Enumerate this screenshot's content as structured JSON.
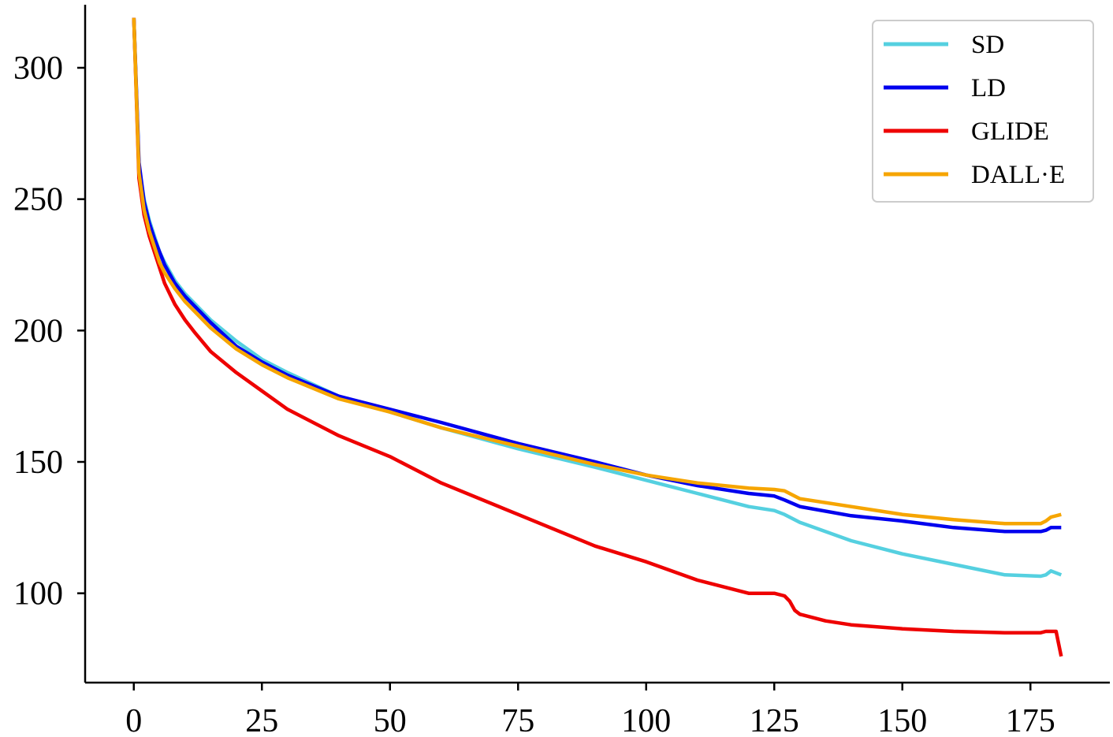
{
  "chart_data": {
    "type": "line",
    "title": "",
    "xlabel": "",
    "ylabel": "",
    "xlim": [
      -9.5,
      190.5
    ],
    "ylim": [
      66,
      324
    ],
    "x_ticks": [
      0,
      25,
      50,
      75,
      100,
      125,
      150,
      175
    ],
    "y_ticks": [
      100,
      150,
      200,
      250,
      300
    ],
    "grid": false,
    "legend_position": "top-right",
    "series": [
      {
        "name": "SD",
        "color": "#55d0e0",
        "x": [
          0,
          1,
          2,
          3,
          4,
          5,
          6,
          8,
          10,
          12,
          15,
          20,
          25,
          30,
          40,
          50,
          60,
          75,
          90,
          100,
          110,
          120,
          125,
          127,
          130,
          140,
          150,
          160,
          170,
          177,
          178,
          179,
          181
        ],
        "y": [
          319,
          262,
          250,
          242,
          236,
          230,
          226,
          219,
          214,
          210,
          204,
          196,
          189,
          184,
          175,
          169,
          163,
          155,
          148,
          143,
          138,
          133,
          131.5,
          130,
          127,
          120,
          115,
          111,
          107,
          106.5,
          107,
          108.5,
          107
        ]
      },
      {
        "name": "LD",
        "color": "#0000ee",
        "x": [
          0,
          1,
          2,
          3,
          4,
          5,
          6,
          8,
          10,
          12,
          15,
          20,
          25,
          30,
          40,
          50,
          60,
          75,
          90,
          100,
          110,
          120,
          125,
          127,
          130,
          140,
          150,
          160,
          170,
          177,
          178,
          179,
          181
        ],
        "y": [
          319,
          264,
          249,
          241,
          235,
          230,
          225,
          218,
          213,
          209,
          203,
          194,
          188,
          183,
          175,
          170,
          165,
          157,
          150,
          145,
          141,
          138,
          137,
          135.5,
          133,
          129.5,
          127.5,
          125,
          123.5,
          123.5,
          124,
          125,
          125
        ]
      },
      {
        "name": "GLIDE",
        "color": "#ee0000",
        "x": [
          0,
          1,
          2,
          3,
          4,
          5,
          6,
          8,
          10,
          12,
          15,
          20,
          25,
          30,
          40,
          50,
          60,
          75,
          90,
          100,
          110,
          120,
          125,
          127,
          128,
          129,
          130,
          135,
          140,
          150,
          160,
          170,
          177,
          178,
          179,
          180,
          181
        ],
        "y": [
          319,
          258,
          244,
          236,
          230,
          224,
          218,
          210,
          204,
          199,
          192,
          184,
          177,
          170,
          160,
          152,
          142,
          130,
          118,
          112,
          105,
          100,
          100,
          99,
          97,
          93.5,
          92,
          89.5,
          88,
          86.5,
          85.5,
          85,
          85,
          85.5,
          85.5,
          85.5,
          76
        ]
      },
      {
        "name": "DALL·E",
        "color": "#f6a500",
        "x": [
          0,
          1,
          2,
          3,
          4,
          5,
          6,
          8,
          10,
          12,
          15,
          20,
          25,
          30,
          40,
          50,
          60,
          75,
          90,
          100,
          110,
          120,
          125,
          127,
          130,
          140,
          150,
          160,
          170,
          177,
          178,
          179,
          181
        ],
        "y": [
          319,
          260,
          246,
          238,
          232,
          226,
          222,
          216,
          211,
          207,
          201,
          193,
          187,
          182,
          174,
          169,
          163,
          156,
          149,
          145,
          142,
          140,
          139.5,
          139,
          136,
          133,
          130,
          128,
          126.5,
          126.5,
          127.5,
          129,
          130
        ]
      }
    ]
  }
}
